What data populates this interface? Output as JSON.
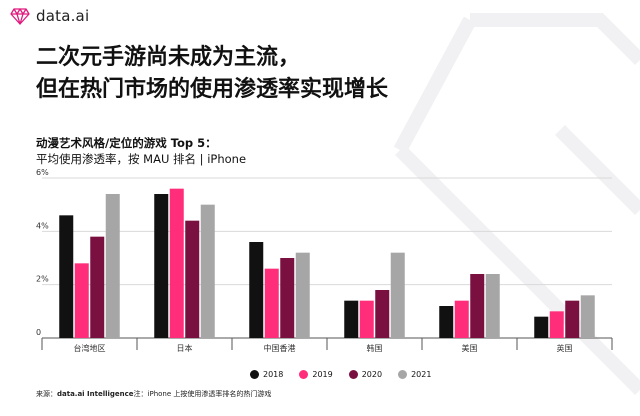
{
  "brand": {
    "name": "data.ai"
  },
  "headline": {
    "line1": "二次元手游尚未成为主流，",
    "line2": "但在热门市场的使用渗透率实现增长"
  },
  "chart_data": {
    "type": "bar",
    "title": "动漫艺术风格/定位的游戏 Top 5：",
    "subtitle": "平均使用渗透率，按 MAU 排名 | iPhone",
    "categories": [
      "台湾地区",
      "日本",
      "中国香港",
      "韩国",
      "美国",
      "英国"
    ],
    "series": [
      {
        "name": "2018",
        "color": "#111111",
        "values": [
          4.6,
          5.4,
          3.6,
          1.4,
          1.2,
          0.8
        ]
      },
      {
        "name": "2019",
        "color": "#ff2d7a",
        "values": [
          2.8,
          5.6,
          2.6,
          1.4,
          1.4,
          1.0
        ]
      },
      {
        "name": "2020",
        "color": "#7a1040",
        "values": [
          3.8,
          4.4,
          3.0,
          1.8,
          2.4,
          1.4
        ]
      },
      {
        "name": "2021",
        "color": "#a6a6a6",
        "values": [
          5.4,
          5.0,
          3.2,
          3.2,
          2.4,
          1.6
        ]
      }
    ],
    "ylim": [
      0,
      6
    ],
    "yticks": [
      "0",
      "2%",
      "4%",
      "6%"
    ],
    "grid": true,
    "legend": "bottom"
  },
  "footnote": {
    "source_label": "来源：",
    "source_name": "data.ai Intelligence",
    "note": "注：iPhone 上按使用渗透率排名的热门游戏"
  }
}
